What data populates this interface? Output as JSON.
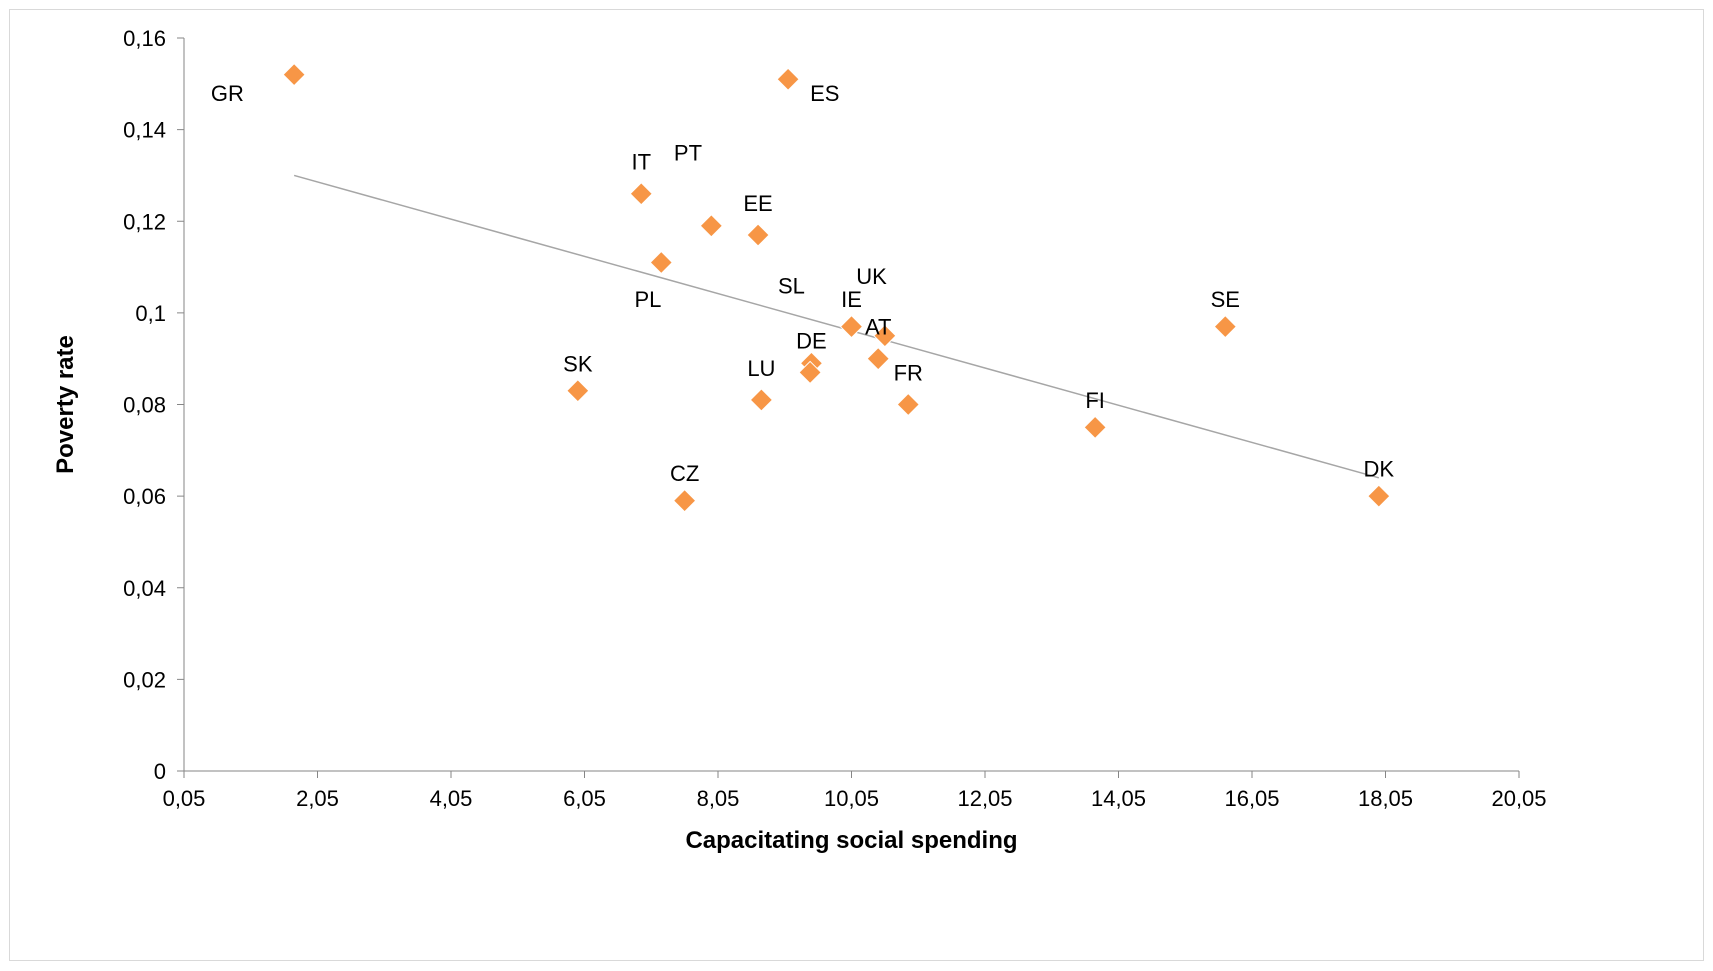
{
  "chart_data": {
    "type": "scatter",
    "title": "",
    "xlabel": "Capacitating social spending",
    "ylabel": "Poverty rate",
    "xlim": [
      0.05,
      20.05
    ],
    "ylim": [
      0,
      0.16
    ],
    "x_ticks": [
      "0,05",
      "2,05",
      "4,05",
      "6,05",
      "8,05",
      "10,05",
      "12,05",
      "14,05",
      "16,05",
      "18,05",
      "20,05"
    ],
    "y_ticks": [
      "0",
      "0,02",
      "0,04",
      "0,06",
      "0,08",
      "0,1",
      "0,12",
      "0,14",
      "0,16"
    ],
    "grid": false,
    "legend": "none",
    "marker": "diamond",
    "marker_color": "#f79646",
    "trendline": {
      "type": "linear",
      "color": "#a6a6a6",
      "from": [
        1.7,
        0.13
      ],
      "to": [
        17.95,
        0.064
      ]
    },
    "points": [
      {
        "x": 1.7,
        "y": 0.152
      },
      {
        "x": 9.1,
        "y": 0.151
      },
      {
        "x": 6.9,
        "y": 0.126
      },
      {
        "x": 7.95,
        "y": 0.119
      },
      {
        "x": 8.65,
        "y": 0.117
      },
      {
        "x": 7.2,
        "y": 0.111
      },
      {
        "x": 10.05,
        "y": 0.097
      },
      {
        "x": 10.55,
        "y": 0.095
      },
      {
        "x": 15.65,
        "y": 0.097
      },
      {
        "x": 9.45,
        "y": 0.089
      },
      {
        "x": 9.43,
        "y": 0.087
      },
      {
        "x": 10.45,
        "y": 0.09
      },
      {
        "x": 5.95,
        "y": 0.083
      },
      {
        "x": 8.7,
        "y": 0.081
      },
      {
        "x": 10.9,
        "y": 0.08
      },
      {
        "x": 13.7,
        "y": 0.075
      },
      {
        "x": 7.55,
        "y": 0.059
      },
      {
        "x": 17.95,
        "y": 0.06
      }
    ],
    "labels": [
      {
        "text": "GR",
        "x": 0.7,
        "y": 0.148
      },
      {
        "text": "ES",
        "x": 9.65,
        "y": 0.148
      },
      {
        "text": "IT",
        "x": 6.9,
        "y": 0.133
      },
      {
        "text": "PT",
        "x": 7.6,
        "y": 0.135
      },
      {
        "text": "EE",
        "x": 8.65,
        "y": 0.124
      },
      {
        "text": "PL",
        "x": 7.0,
        "y": 0.103
      },
      {
        "text": "SL",
        "x": 9.15,
        "y": 0.106
      },
      {
        "text": "UK",
        "x": 10.35,
        "y": 0.108
      },
      {
        "text": "IE",
        "x": 10.05,
        "y": 0.103
      },
      {
        "text": "SE",
        "x": 15.65,
        "y": 0.103
      },
      {
        "text": "AT",
        "x": 10.45,
        "y": 0.097
      },
      {
        "text": "DE",
        "x": 9.45,
        "y": 0.094
      },
      {
        "text": "SK",
        "x": 5.95,
        "y": 0.089
      },
      {
        "text": "LU",
        "x": 8.7,
        "y": 0.088
      },
      {
        "text": "FR",
        "x": 10.9,
        "y": 0.087
      },
      {
        "text": "FI",
        "x": 13.7,
        "y": 0.081
      },
      {
        "text": "CZ",
        "x": 7.55,
        "y": 0.065
      },
      {
        "text": "DK",
        "x": 17.95,
        "y": 0.066
      }
    ]
  }
}
